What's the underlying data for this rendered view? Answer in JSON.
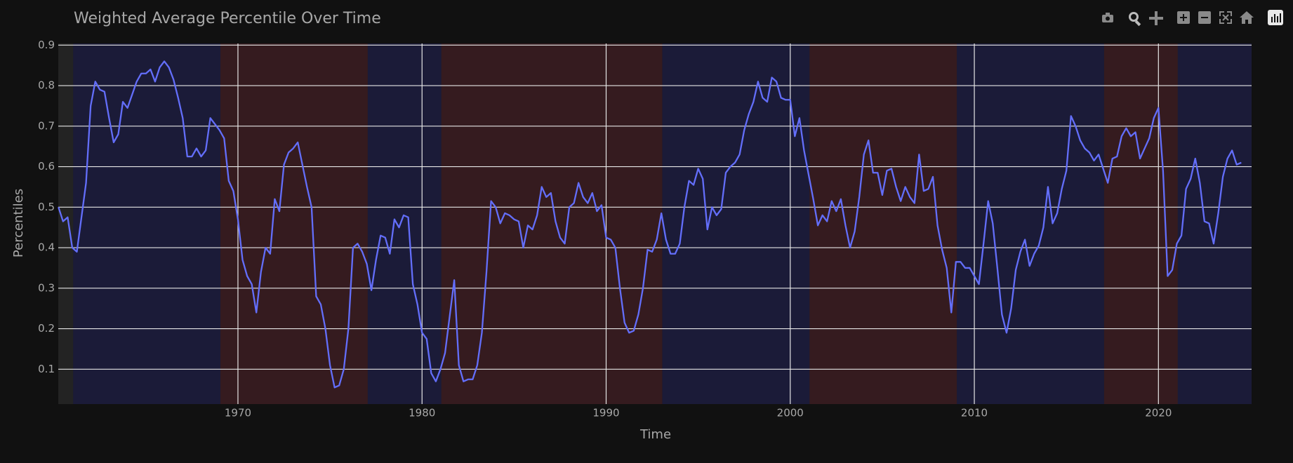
{
  "chart_data": {
    "type": "line",
    "title": "Weighted Average Percentile Over Time",
    "x_label": "Time",
    "y_label": "Percentiles",
    "color": "#636efa",
    "grid": true,
    "xlim": [
      1960.24,
      2025.06
    ],
    "xticks": [
      1970,
      1980,
      1990,
      2000,
      2010,
      2020
    ],
    "ylim": [
      0.014,
      0.904
    ],
    "yticks": [
      0.1,
      0.2,
      0.3,
      0.4,
      0.5,
      0.6,
      0.7,
      0.8,
      0.9
    ],
    "shaded_regions": [
      {
        "x0": 1961.05,
        "x1": 1969.05,
        "color": "#1b1b38"
      },
      {
        "x0": 1969.05,
        "x1": 1977.05,
        "color": "#351b1f"
      },
      {
        "x0": 1977.05,
        "x1": 1981.05,
        "color": "#1b1b38"
      },
      {
        "x0": 1981.05,
        "x1": 1993.05,
        "color": "#351b1f"
      },
      {
        "x0": 1993.05,
        "x1": 2001.05,
        "color": "#1b1b38"
      },
      {
        "x0": 2001.05,
        "x1": 2009.05,
        "color": "#351b1f"
      },
      {
        "x0": 2009.05,
        "x1": 2017.05,
        "color": "#1b1b38"
      },
      {
        "x0": 2017.05,
        "x1": 2021.05,
        "color": "#351b1f"
      },
      {
        "x0": 2021.05,
        "x1": 2025.06,
        "color": "#1b1b38"
      }
    ],
    "x": [
      1960.25,
      1960.5,
      1960.75,
      1961.0,
      1961.25,
      1961.75,
      1962.0,
      1962.25,
      1962.5,
      1962.75,
      1963.0,
      1963.25,
      1963.5,
      1963.75,
      1964.0,
      1964.5,
      1964.75,
      1965.0,
      1965.25,
      1965.5,
      1965.75,
      1966.0,
      1966.25,
      1966.5,
      1966.75,
      1967.0,
      1967.25,
      1967.5,
      1967.75,
      1968.0,
      1968.25,
      1968.5,
      1968.75,
      1969.0,
      1969.25,
      1969.5,
      1969.75,
      1970.0,
      1970.25,
      1970.5,
      1970.75,
      1971.0,
      1971.25,
      1971.5,
      1971.75,
      1972.0,
      1972.25,
      1972.5,
      1972.75,
      1973.0,
      1973.25,
      1973.5,
      1973.75,
      1974.0,
      1974.25,
      1974.5,
      1974.75,
      1975.0,
      1975.25,
      1975.5,
      1975.75,
      1976.0,
      1976.25,
      1976.5,
      1976.75,
      1977.0,
      1977.25,
      1977.5,
      1977.75,
      1978.0,
      1978.25,
      1978.5,
      1978.75,
      1979.0,
      1979.25,
      1979.5,
      1979.75,
      1980.0,
      1980.25,
      1980.5,
      1980.75,
      1981.0,
      1981.25,
      1981.5,
      1981.75,
      1982.0,
      1982.25,
      1982.5,
      1982.75,
      1983.0,
      1983.25,
      1983.5,
      1983.75,
      1984.0,
      1984.25,
      1984.5,
      1984.75,
      1985.0,
      1985.25,
      1985.5,
      1985.75,
      1986.0,
      1986.25,
      1986.5,
      1986.75,
      1987.0,
      1987.25,
      1987.5,
      1987.75,
      1988.0,
      1988.25,
      1988.5,
      1988.75,
      1989.0,
      1989.25,
      1989.5,
      1989.75,
      1990.0,
      1990.25,
      1990.5,
      1990.75,
      1991.0,
      1991.25,
      1991.5,
      1991.75,
      1992.0,
      1992.25,
      1992.5,
      1992.75,
      1993.0,
      1993.25,
      1993.5,
      1993.75,
      1994.0,
      1994.25,
      1994.5,
      1994.75,
      1995.0,
      1995.25,
      1995.5,
      1995.75,
      1996.0,
      1996.25,
      1996.5,
      1996.75,
      1997.0,
      1997.25,
      1997.5,
      1997.75,
      1998.0,
      1998.25,
      1998.5,
      1998.75,
      1999.0,
      1999.25,
      1999.5,
      1999.75,
      2000.0,
      2000.25,
      2000.5,
      2000.75,
      2001.0,
      2001.25,
      2001.5,
      2001.75,
      2002.0,
      2002.25,
      2002.5,
      2002.75,
      2003.0,
      2003.25,
      2003.5,
      2003.75,
      2004.0,
      2004.25,
      2004.5,
      2004.75,
      2005.0,
      2005.25,
      2005.5,
      2005.75,
      2006.0,
      2006.25,
      2006.5,
      2006.75,
      2007.0,
      2007.25,
      2007.5,
      2007.75,
      2008.0,
      2008.25,
      2008.5,
      2008.75,
      2009.0,
      2009.25,
      2009.5,
      2009.75,
      2010.0,
      2010.25,
      2010.5,
      2010.75,
      2011.0,
      2011.25,
      2011.5,
      2011.75,
      2012.0,
      2012.25,
      2012.5,
      2012.75,
      2013.0,
      2013.25,
      2013.5,
      2013.75,
      2014.0,
      2014.25,
      2014.5,
      2014.75,
      2015.0,
      2015.25,
      2015.5,
      2015.75,
      2016.0,
      2016.25,
      2016.5,
      2016.75,
      2017.0,
      2017.25,
      2017.5,
      2017.75,
      2018.0,
      2018.25,
      2018.5,
      2018.75,
      2019.0,
      2019.25,
      2019.5,
      2019.75,
      2020.0,
      2020.25,
      2020.5,
      2020.75,
      2021.0,
      2021.25,
      2021.5,
      2021.75,
      2022.0,
      2022.25,
      2022.5,
      2022.75,
      2023.0,
      2023.25,
      2023.5,
      2023.75,
      2024.0,
      2024.25,
      2024.5
    ],
    "values": [
      0.5,
      0.465,
      0.475,
      0.4,
      0.39,
      0.56,
      0.75,
      0.81,
      0.79,
      0.785,
      0.72,
      0.66,
      0.68,
      0.76,
      0.745,
      0.81,
      0.83,
      0.83,
      0.84,
      0.81,
      0.845,
      0.86,
      0.845,
      0.815,
      0.77,
      0.72,
      0.625,
      0.625,
      0.645,
      0.625,
      0.64,
      0.72,
      0.705,
      0.69,
      0.67,
      0.565,
      0.54,
      0.47,
      0.37,
      0.33,
      0.31,
      0.24,
      0.34,
      0.4,
      0.385,
      0.52,
      0.49,
      0.605,
      0.635,
      0.645,
      0.66,
      0.605,
      0.55,
      0.5,
      0.28,
      0.26,
      0.2,
      0.11,
      0.055,
      0.06,
      0.1,
      0.2,
      0.4,
      0.41,
      0.39,
      0.36,
      0.295,
      0.37,
      0.43,
      0.425,
      0.385,
      0.47,
      0.45,
      0.48,
      0.475,
      0.31,
      0.26,
      0.19,
      0.175,
      0.09,
      0.07,
      0.1,
      0.14,
      0.23,
      0.32,
      0.11,
      0.07,
      0.075,
      0.075,
      0.11,
      0.19,
      0.34,
      0.515,
      0.5,
      0.46,
      0.485,
      0.48,
      0.47,
      0.465,
      0.4,
      0.455,
      0.445,
      0.48,
      0.55,
      0.525,
      0.535,
      0.465,
      0.425,
      0.41,
      0.5,
      0.51,
      0.56,
      0.525,
      0.51,
      0.535,
      0.49,
      0.505,
      0.425,
      0.42,
      0.4,
      0.3,
      0.215,
      0.19,
      0.195,
      0.235,
      0.3,
      0.395,
      0.39,
      0.42,
      0.485,
      0.42,
      0.385,
      0.385,
      0.41,
      0.5,
      0.565,
      0.555,
      0.595,
      0.57,
      0.445,
      0.5,
      0.48,
      0.495,
      0.585,
      0.6,
      0.61,
      0.63,
      0.69,
      0.73,
      0.76,
      0.81,
      0.77,
      0.76,
      0.82,
      0.81,
      0.77,
      0.765,
      0.765,
      0.675,
      0.72,
      0.64,
      0.58,
      0.52,
      0.455,
      0.48,
      0.465,
      0.515,
      0.49,
      0.52,
      0.455,
      0.4,
      0.44,
      0.525,
      0.63,
      0.665,
      0.585,
      0.585,
      0.53,
      0.59,
      0.595,
      0.55,
      0.515,
      0.55,
      0.525,
      0.51,
      0.63,
      0.54,
      0.545,
      0.575,
      0.455,
      0.395,
      0.35,
      0.24,
      0.365,
      0.365,
      0.35,
      0.35,
      0.33,
      0.31,
      0.41,
      0.515,
      0.46,
      0.35,
      0.235,
      0.19,
      0.25,
      0.345,
      0.39,
      0.42,
      0.355,
      0.385,
      0.405,
      0.45,
      0.55,
      0.46,
      0.485,
      0.545,
      0.59,
      0.725,
      0.7,
      0.665,
      0.645,
      0.635,
      0.615,
      0.63,
      0.595,
      0.56,
      0.62,
      0.625,
      0.675,
      0.695,
      0.675,
      0.685,
      0.62,
      0.645,
      0.67,
      0.72,
      0.745,
      0.59,
      0.33,
      0.345,
      0.41,
      0.43,
      0.545,
      0.57,
      0.62,
      0.56,
      0.465,
      0.46,
      0.41,
      0.485,
      0.575,
      0.62,
      0.64,
      0.605,
      0.61
    ]
  }
}
